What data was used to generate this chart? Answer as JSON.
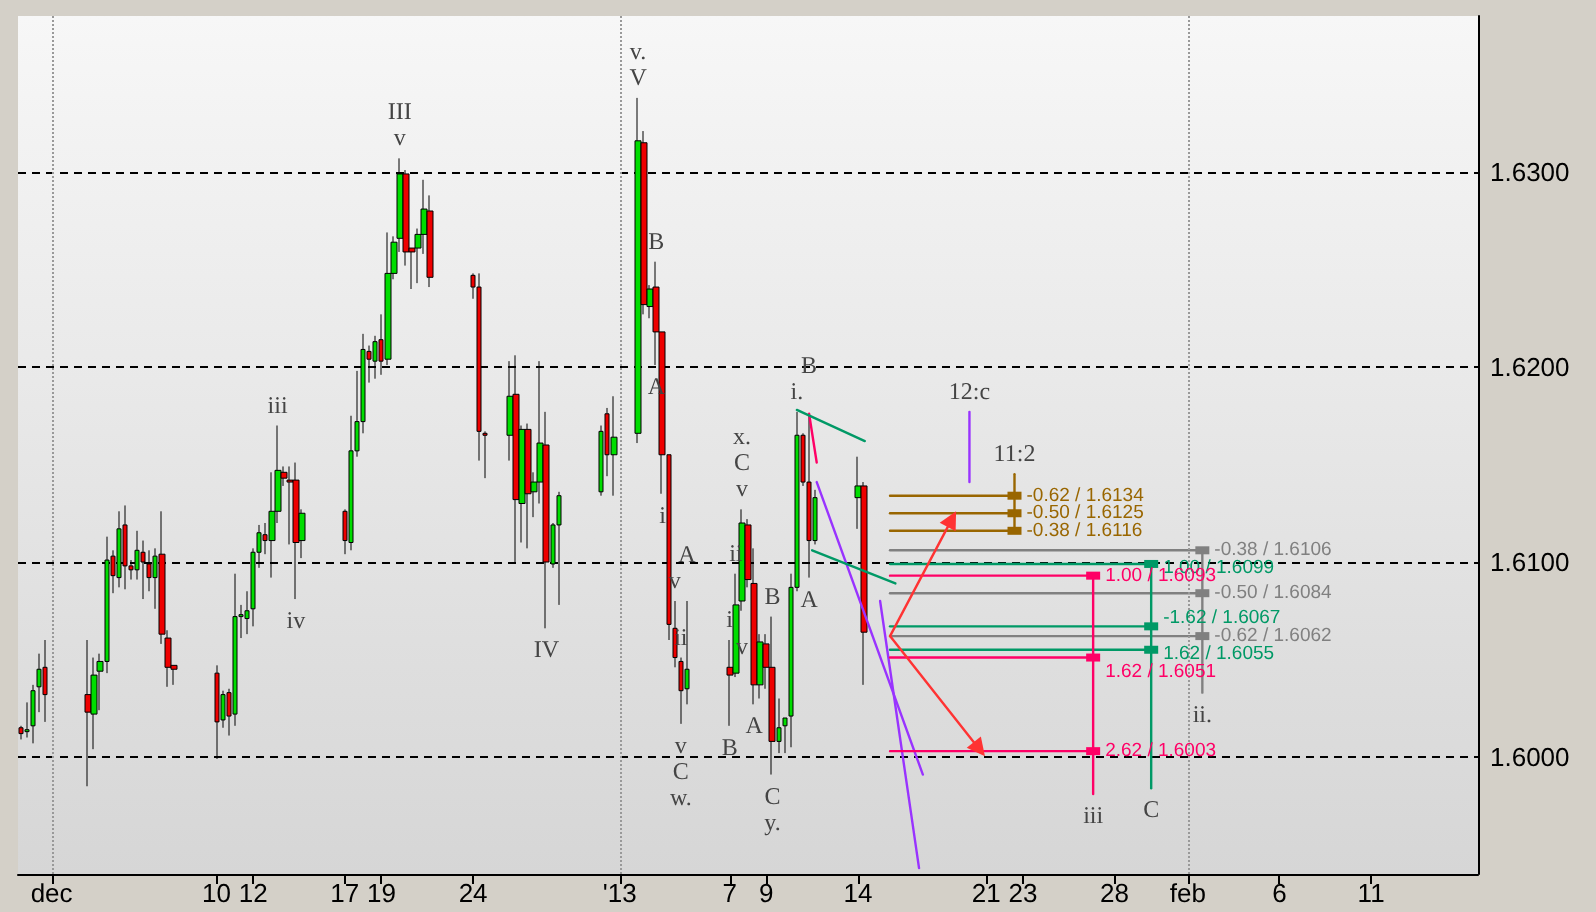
{
  "chart_data": {
    "type": "candlestick",
    "xlim": [
      "2012-11-29T04:00",
      "2013-02-16T20:00"
    ],
    "xticks": [
      {
        "value": "2012-12-01",
        "label": "dec"
      },
      {
        "value": "2012-12-10",
        "label": "10"
      },
      {
        "value": "2012-12-12",
        "label": "12"
      },
      {
        "value": "2012-12-17",
        "label": "17"
      },
      {
        "value": "2012-12-19",
        "label": "19"
      },
      {
        "value": "2012-12-24",
        "label": "24"
      },
      {
        "value": "2013-01-01",
        "label": "'13"
      },
      {
        "value": "2013-01-07",
        "label": "7"
      },
      {
        "value": "2013-01-09",
        "label": "9"
      },
      {
        "value": "2013-01-14",
        "label": "14"
      },
      {
        "value": "2013-01-21",
        "label": "21"
      },
      {
        "value": "2013-01-23",
        "label": "23"
      },
      {
        "value": "2013-01-28",
        "label": "28"
      },
      {
        "value": "2013-02-01",
        "label": "feb"
      },
      {
        "value": "2013-02-06",
        "label": "6"
      },
      {
        "value": "2013-02-11",
        "label": "11"
      }
    ],
    "ylim": [
      1.594,
      1.638
    ],
    "yticks": [
      {
        "value": 1.6,
        "label": "1.6000"
      },
      {
        "value": 1.61,
        "label": "1.6100"
      },
      {
        "value": 1.62,
        "label": "1.6200"
      },
      {
        "value": 1.63,
        "label": "1.6300"
      }
    ],
    "grid": "y",
    "annotations": [
      {
        "text": "v",
        "x": "2012-12-20T00:00",
        "y": 1.6307
      },
      {
        "text": "III",
        "x": "2012-12-20T00:00",
        "y": 1.6307
      },
      {
        "text": "iii",
        "x": "2012-12-13T08:00",
        "y": 1.617
      },
      {
        "text": "iv",
        "x": "2012-12-14T08:00",
        "y": 1.6081
      },
      {
        "text": "IV",
        "x": "2012-12-28T00:00",
        "y": 1.6066
      },
      {
        "text": "V",
        "x": "2013-01-02T00:00",
        "y": 1.6338
      },
      {
        "text": "v.",
        "x": "2013-01-02T00:00",
        "y": 1.6338
      },
      {
        "text": "B",
        "x": "2013-01-03T00:00",
        "y": 1.6254
      },
      {
        "text": "A",
        "x": "2013-01-03T00:00",
        "y": 1.6201
      },
      {
        "text": "i",
        "x": "2013-01-03T08:00",
        "y": 1.6135
      },
      {
        "text": "v",
        "x": "2013-01-04T00:00",
        "y": 1.608
      },
      {
        "text": "ii",
        "x": "2013-01-04T08:00",
        "y": 1.6051
      },
      {
        "text": "v",
        "x": "2013-01-04T08:00",
        "y": 1.6017
      },
      {
        "text": "C",
        "x": "2013-01-04T08:00",
        "y": 1.6017
      },
      {
        "text": "w.",
        "x": "2013-01-04T08:00",
        "y": 1.6017
      },
      {
        "text": "A",
        "x": "2013-01-04T16:00",
        "y": 1.608
      },
      {
        "text": "i",
        "x": "2013-01-07T00:00",
        "y": 1.606
      },
      {
        "text": "B",
        "x": "2013-01-07T00:00",
        "y": 1.6016
      },
      {
        "text": "ii",
        "x": "2013-01-07T08:00",
        "y": 1.6094
      },
      {
        "text": "v",
        "x": "2013-01-07T16:00",
        "y": 1.6075
      },
      {
        "text": "v",
        "x": "2013-01-07T16:00",
        "y": 1.6127
      },
      {
        "text": "C",
        "x": "2013-01-07T16:00",
        "y": 1.6127
      },
      {
        "text": "x.",
        "x": "2013-01-07T16:00",
        "y": 1.6127
      },
      {
        "text": "A",
        "x": "2013-01-08T08:00",
        "y": 1.6027
      },
      {
        "text": "B",
        "x": "2013-01-09T08:00",
        "y": 1.6072
      },
      {
        "text": "C",
        "x": "2013-01-09T08:00",
        "y": 1.5991
      },
      {
        "text": "y.",
        "x": "2013-01-09T08:00",
        "y": 1.5991
      },
      {
        "text": "i.",
        "x": "2013-01-10T16:00",
        "y": 1.6177
      },
      {
        "text": "B",
        "x": "2013-01-11T08:00",
        "y": 1.6175
      },
      {
        "text": "A",
        "x": "2013-01-11T08:00",
        "y": 1.6092
      },
      {
        "text": "12:c",
        "x": "2013-01-20T02:00",
        "y": 1.6177
      },
      {
        "text": "11:2",
        "x": "2013-01-22T13:00",
        "y": 1.6145
      },
      {
        "text": "iii",
        "x": "2013-01-26T20:00",
        "y": 1.5981
      },
      {
        "text": "C",
        "x": "2013-01-30T00:00",
        "y": 1.5984
      },
      {
        "text": "ii.",
        "x": "2013-02-01T19:00",
        "y": 1.6033
      }
    ],
    "ref_lines": [
      {
        "axis": "x",
        "value": "2012-12-01",
        "color": "#999999",
        "line_style": "dotted"
      },
      {
        "axis": "x",
        "value": "2013-01-01",
        "color": "#999999",
        "line_style": "dotted"
      },
      {
        "axis": "x",
        "value": "2013-02-01",
        "color": "#999999",
        "line_style": "dotted"
      }
    ],
    "series": [
      {
        "type": "candlestick",
        "x": [
          "2012-11-29T08:00",
          "2012-11-29T16:00",
          "2012-11-30T00:00",
          "2012-11-30T08:00",
          "2012-11-30T16:00",
          "2012-12-03T00:00",
          "2012-12-03T08:00",
          "2012-12-03T16:00",
          "2012-12-04T00:00",
          "2012-12-04T08:00",
          "2012-12-04T16:00",
          "2012-12-05T00:00",
          "2012-12-05T08:00",
          "2012-12-05T16:00",
          "2012-12-06T00:00",
          "2012-12-06T08:00",
          "2012-12-06T16:00",
          "2012-12-07T00:00",
          "2012-12-07T08:00",
          "2012-12-07T16:00",
          "2012-12-10T00:00",
          "2012-12-10T08:00",
          "2012-12-10T16:00",
          "2012-12-11T00:00",
          "2012-12-11T08:00",
          "2012-12-11T16:00",
          "2012-12-12T00:00",
          "2012-12-12T08:00",
          "2012-12-12T16:00",
          "2012-12-13T00:00",
          "2012-12-13T08:00",
          "2012-12-13T16:00",
          "2012-12-14T00:00",
          "2012-12-14T08:00",
          "2012-12-14T16:00",
          "2012-12-17T00:00",
          "2012-12-17T08:00",
          "2012-12-17T16:00",
          "2012-12-18T00:00",
          "2012-12-18T08:00",
          "2012-12-18T16:00",
          "2012-12-19T00:00",
          "2012-12-19T08:00",
          "2012-12-19T16:00",
          "2012-12-20T00:00",
          "2012-12-20T08:00",
          "2012-12-20T16:00",
          "2012-12-21T00:00",
          "2012-12-21T08:00",
          "2012-12-21T16:00",
          "2012-12-24T00:00",
          "2012-12-24T08:00",
          "2012-12-24T16:00",
          "2012-12-26T00:00",
          "2012-12-26T08:00",
          "2012-12-26T16:00",
          "2012-12-27T00:00",
          "2012-12-27T08:00",
          "2012-12-27T16:00",
          "2012-12-28T00:00",
          "2012-12-28T08:00",
          "2012-12-28T16:00",
          "2012-12-31T00:00",
          "2012-12-31T08:00",
          "2012-12-31T16:00",
          "2013-01-02T00:00",
          "2013-01-02T08:00",
          "2013-01-02T16:00",
          "2013-01-03T00:00",
          "2013-01-03T08:00",
          "2013-01-03T16:00",
          "2013-01-04T00:00",
          "2013-01-04T08:00",
          "2013-01-04T16:00",
          "2013-01-07T00:00",
          "2013-01-07T08:00",
          "2013-01-07T16:00",
          "2013-01-08T00:00",
          "2013-01-08T08:00",
          "2013-01-08T16:00",
          "2013-01-09T00:00",
          "2013-01-09T08:00",
          "2013-01-09T16:00",
          "2013-01-10T00:00",
          "2013-01-10T08:00",
          "2013-01-10T16:00",
          "2013-01-11T00:00",
          "2013-01-11T08:00",
          "2013-01-11T16:00",
          "2013-01-14T00:00",
          "2013-01-14T08:00"
        ],
        "ohlc": [
          [
            1.6015,
            1.6016,
            1.6009,
            1.6012
          ],
          [
            1.6013,
            1.6028,
            1.601,
            1.6014
          ],
          [
            1.6016,
            1.6037,
            1.6007,
            1.6034
          ],
          [
            1.6036,
            1.6053,
            1.6023,
            1.6045
          ],
          [
            1.6046,
            1.606,
            1.6018,
            1.6032
          ],
          [
            1.6032,
            1.606,
            1.5985,
            1.6023
          ],
          [
            1.6022,
            1.6051,
            1.6004,
            1.6042
          ],
          [
            1.6044,
            1.6053,
            1.6024,
            1.6049
          ],
          [
            1.6049,
            1.6113,
            1.6043,
            1.6101
          ],
          [
            1.6103,
            1.6106,
            1.6084,
            1.6093
          ],
          [
            1.6092,
            1.6126,
            1.6087,
            1.6117
          ],
          [
            1.6119,
            1.6129,
            1.6086,
            1.6098
          ],
          [
            1.6098,
            1.6101,
            1.6091,
            1.6096
          ],
          [
            1.6096,
            1.6116,
            1.6091,
            1.6106
          ],
          [
            1.6105,
            1.6111,
            1.6081,
            1.61
          ],
          [
            1.6099,
            1.6106,
            1.6085,
            1.6092
          ],
          [
            1.6092,
            1.6107,
            1.6076,
            1.6103
          ],
          [
            1.6104,
            1.6126,
            1.6058,
            1.6063
          ],
          [
            1.6061,
            1.6065,
            1.6036,
            1.6046
          ],
          [
            1.6047,
            1.6047,
            1.6037,
            1.6045
          ],
          [
            1.6043,
            1.6047,
            1.5999,
            1.6018
          ],
          [
            1.6019,
            1.6034,
            1.6015,
            1.6032
          ],
          [
            1.6033,
            1.6035,
            1.6011,
            1.6021
          ],
          [
            1.6022,
            1.6094,
            1.6016,
            1.6072
          ],
          [
            1.6072,
            1.6078,
            1.6061,
            1.6073
          ],
          [
            1.6071,
            1.6085,
            1.6063,
            1.6075
          ],
          [
            1.6076,
            1.6107,
            1.6067,
            1.6105
          ],
          [
            1.6105,
            1.6119,
            1.6097,
            1.6115
          ],
          [
            1.6114,
            1.612,
            1.6104,
            1.6111
          ],
          [
            1.6111,
            1.6146,
            1.6092,
            1.6126
          ],
          [
            1.6126,
            1.617,
            1.612,
            1.6147
          ],
          [
            1.6146,
            1.6149,
            1.6139,
            1.6143
          ],
          [
            1.6142,
            1.6149,
            1.6109,
            1.6141
          ],
          [
            1.6142,
            1.6151,
            1.6081,
            1.611
          ],
          [
            1.6111,
            1.6127,
            1.6102,
            1.6125
          ],
          [
            1.6126,
            1.6127,
            1.6104,
            1.6111
          ],
          [
            1.611,
            1.6175,
            1.6106,
            1.6157
          ],
          [
            1.6157,
            1.6198,
            1.6154,
            1.6172
          ],
          [
            1.6172,
            1.6217,
            1.6166,
            1.6209
          ],
          [
            1.6208,
            1.6211,
            1.6192,
            1.6204
          ],
          [
            1.6203,
            1.6216,
            1.6194,
            1.6213
          ],
          [
            1.6214,
            1.6227,
            1.6196,
            1.6203
          ],
          [
            1.6204,
            1.6269,
            1.6201,
            1.6248
          ],
          [
            1.6248,
            1.6267,
            1.6245,
            1.6264
          ],
          [
            1.6266,
            1.6307,
            1.6259,
            1.6299
          ],
          [
            1.6299,
            1.6301,
            1.6252,
            1.6259
          ],
          [
            1.6261,
            1.6261,
            1.624,
            1.6259
          ],
          [
            1.6261,
            1.6271,
            1.6243,
            1.6268
          ],
          [
            1.6268,
            1.6296,
            1.6258,
            1.6281
          ],
          [
            1.628,
            1.6288,
            1.6241,
            1.6246
          ],
          [
            1.6247,
            1.6248,
            1.6235,
            1.6241
          ],
          [
            1.6241,
            1.6248,
            1.6152,
            1.6167
          ],
          [
            1.6166,
            1.6167,
            1.6143,
            1.6165
          ],
          [
            1.6165,
            1.6203,
            1.6152,
            1.6185
          ],
          [
            1.6186,
            1.6206,
            1.61,
            1.6132
          ],
          [
            1.613,
            1.617,
            1.611,
            1.6168
          ],
          [
            1.6168,
            1.6171,
            1.6107,
            1.6135
          ],
          [
            1.6136,
            1.6146,
            1.6123,
            1.6141
          ],
          [
            1.6141,
            1.6203,
            1.613,
            1.6161
          ],
          [
            1.616,
            1.6177,
            1.6066,
            1.61
          ],
          [
            1.6099,
            1.612,
            1.6097,
            1.6119
          ],
          [
            1.6119,
            1.6136,
            1.6078,
            1.6134
          ],
          [
            1.6136,
            1.617,
            1.6134,
            1.6167
          ],
          [
            1.6176,
            1.6179,
            1.6144,
            1.6155
          ],
          [
            1.6155,
            1.6185,
            1.6134,
            1.6164
          ],
          [
            1.6166,
            1.6338,
            1.6161,
            1.6316
          ],
          [
            1.6315,
            1.6321,
            1.6227,
            1.6232
          ],
          [
            1.6231,
            1.6242,
            1.6225,
            1.624
          ],
          [
            1.6241,
            1.6254,
            1.6201,
            1.6218
          ],
          [
            1.6218,
            1.6218,
            1.6135,
            1.6155
          ],
          [
            1.6155,
            1.6155,
            1.606,
            1.6068
          ],
          [
            1.6066,
            1.608,
            1.6046,
            1.6051
          ],
          [
            1.6049,
            1.6051,
            1.6017,
            1.6034
          ],
          [
            1.6035,
            1.608,
            1.6027,
            1.6045
          ],
          [
            1.6046,
            1.606,
            1.6016,
            1.6042
          ],
          [
            1.6043,
            1.6094,
            1.6041,
            1.6078
          ],
          [
            1.608,
            1.6127,
            1.6075,
            1.612
          ],
          [
            1.6119,
            1.6122,
            1.6087,
            1.6091
          ],
          [
            1.6089,
            1.6107,
            1.6027,
            1.6037
          ],
          [
            1.6037,
            1.6063,
            1.603,
            1.6059
          ],
          [
            1.6058,
            1.6063,
            1.6035,
            1.6046
          ],
          [
            1.6046,
            1.6072,
            1.5991,
            1.6008
          ],
          [
            1.6008,
            1.603,
            1.6002,
            1.6015
          ],
          [
            1.6016,
            1.602,
            1.6002,
            1.602
          ],
          [
            1.6021,
            1.6094,
            1.6005,
            1.6087
          ],
          [
            1.6087,
            1.6177,
            1.6085,
            1.6165
          ],
          [
            1.6165,
            1.6166,
            1.6139,
            1.6141
          ],
          [
            1.6141,
            1.6175,
            1.6092,
            1.6111
          ],
          [
            1.6111,
            1.6137,
            1.6109,
            1.6133
          ],
          [
            1.6133,
            1.6154,
            1.6117,
            1.6139
          ],
          [
            1.6139,
            1.6141,
            1.6037,
            1.6064
          ]
        ]
      },
      {
        "type": "line",
        "color": "#9933ff",
        "x": [
          "2013-01-11T18:00",
          "2013-01-17T13:00"
        ],
        "values": [
          1.6141,
          1.5991
        ]
      },
      {
        "type": "line",
        "color": "#9933ff",
        "x": [
          "2013-01-15T05:00",
          "2013-01-17T08:00"
        ],
        "values": [
          1.608,
          1.5943
        ]
      },
      {
        "type": "line",
        "color": "#ff0066",
        "x": [
          "2013-01-11T08:00",
          "2013-01-11T18:00"
        ],
        "values": [
          1.6176,
          1.6151
        ]
      },
      {
        "type": "line",
        "color": "#009966",
        "x": [
          "2013-01-10T16:00",
          "2013-01-14T09:00"
        ],
        "values": [
          1.6178,
          1.6162
        ]
      },
      {
        "type": "line",
        "color": "#009966",
        "x": [
          "2013-01-11T12:00",
          "2013-01-16T01:00"
        ],
        "values": [
          1.6106,
          1.6089
        ]
      },
      {
        "type": "line",
        "color": "#9933ff",
        "x": [
          "2013-01-20T02:00",
          "2013-01-20T02:00"
        ],
        "values": [
          1.6177,
          1.6141
        ]
      },
      {
        "type": "line",
        "color": "#996600",
        "x": [
          "2013-01-15T18:00",
          "2013-01-22T13:00"
        ],
        "values": [
          1.6134,
          1.6134
        ],
        "marker": "square",
        "value_labels": [
          null,
          "-0.62 / 1.6134"
        ]
      },
      {
        "type": "line",
        "color": "#996600",
        "x": [
          "2013-01-15T18:00",
          "2013-01-22T13:00"
        ],
        "values": [
          1.6125,
          1.6125
        ],
        "marker": "square",
        "value_labels": [
          null,
          "-0.50 / 1.6125"
        ]
      },
      {
        "type": "line",
        "color": "#996600",
        "x": [
          "2013-01-15T18:00",
          "2013-01-22T13:00"
        ],
        "values": [
          1.6116,
          1.6116
        ],
        "marker": "square",
        "value_labels": [
          null,
          "-0.38 / 1.6116"
        ]
      },
      {
        "type": "line",
        "color": "#996600",
        "x": [
          "2013-01-22T13:00",
          "2013-01-22T13:00"
        ],
        "values": [
          1.6145,
          1.6116
        ]
      },
      {
        "type": "line",
        "color": "#808080",
        "x": [
          "2013-01-15T18:00",
          "2013-02-01T19:00"
        ],
        "values": [
          1.6106,
          1.6106
        ],
        "marker": "square",
        "value_labels": [
          null,
          "-0.38 / 1.6106"
        ]
      },
      {
        "type": "line",
        "color": "#808080",
        "x": [
          "2013-01-15T18:00",
          "2013-02-01T19:00"
        ],
        "values": [
          1.6084,
          1.6084
        ],
        "marker": "square",
        "value_labels": [
          null,
          "-0.50 / 1.6084"
        ]
      },
      {
        "type": "line",
        "color": "#808080",
        "x": [
          "2013-01-15T18:00",
          "2013-02-01T19:00"
        ],
        "values": [
          1.6062,
          1.6062
        ],
        "marker": "square",
        "value_labels": [
          null,
          "-0.62 / 1.6062"
        ]
      },
      {
        "type": "line",
        "color": "#808080",
        "x": [
          "2013-02-01T19:00",
          "2013-02-01T19:00"
        ],
        "values": [
          1.6106,
          1.6033
        ]
      },
      {
        "type": "line",
        "color": "#009966",
        "x": [
          "2013-01-15T18:00",
          "2013-01-30T00:00"
        ],
        "values": [
          1.6099,
          1.6099
        ],
        "marker": "square",
        "value_labels": [
          null,
          "1.00 / 1.6099"
        ]
      },
      {
        "type": "line",
        "color": "#009966",
        "x": [
          "2013-01-15T18:00",
          "2013-01-30T00:00"
        ],
        "values": [
          1.6067,
          1.6067
        ],
        "marker": "square",
        "value_labels": [
          null,
          "-1.62 / 1.6067"
        ]
      },
      {
        "type": "line",
        "color": "#009966",
        "x": [
          "2013-01-15T18:00",
          "2013-01-30T00:00"
        ],
        "values": [
          1.6055,
          1.6055
        ],
        "marker": "square",
        "value_labels": [
          null,
          "1.62 / 1.6055"
        ]
      },
      {
        "type": "line",
        "color": "#009966",
        "x": [
          "2013-01-30T00:00",
          "2013-01-30T00:00"
        ],
        "values": [
          1.6099,
          1.5984
        ]
      },
      {
        "type": "line",
        "color": "#ff0066",
        "x": [
          "2013-01-15T18:00",
          "2013-01-26T20:00"
        ],
        "values": [
          1.6093,
          1.6093
        ],
        "marker": "square",
        "value_labels": [
          null,
          "1.00 / 1.6093"
        ]
      },
      {
        "type": "line",
        "color": "#ff0066",
        "x": [
          "2013-01-15T18:00",
          "2013-01-26T20:00"
        ],
        "values": [
          1.6051,
          1.6051
        ],
        "marker": "square",
        "value_labels": [
          null,
          "1.62 / 1.6051"
        ]
      },
      {
        "type": "line",
        "color": "#ff0066",
        "x": [
          "2013-01-15T18:00",
          "2013-01-26T20:00"
        ],
        "values": [
          1.6003,
          1.6003
        ],
        "marker": "square",
        "value_labels": [
          null,
          "2.62 / 1.6003"
        ]
      },
      {
        "type": "line",
        "color": "#ff0066",
        "x": [
          "2013-01-26T20:00",
          "2013-01-26T20:00"
        ],
        "values": [
          1.6093,
          1.5981
        ]
      },
      {
        "type": "line",
        "color": "#ff3333",
        "x": [
          "2013-01-15T18:00",
          "2013-01-19T03:00"
        ],
        "values": [
          1.6062,
          1.6122
        ],
        "marker": "triangle"
      },
      {
        "type": "line",
        "color": "#ff3333",
        "x": [
          "2013-01-15T18:00",
          "2013-01-20T15:00"
        ],
        "values": [
          1.6062,
          1.6004
        ],
        "marker": "triangle"
      }
    ]
  }
}
